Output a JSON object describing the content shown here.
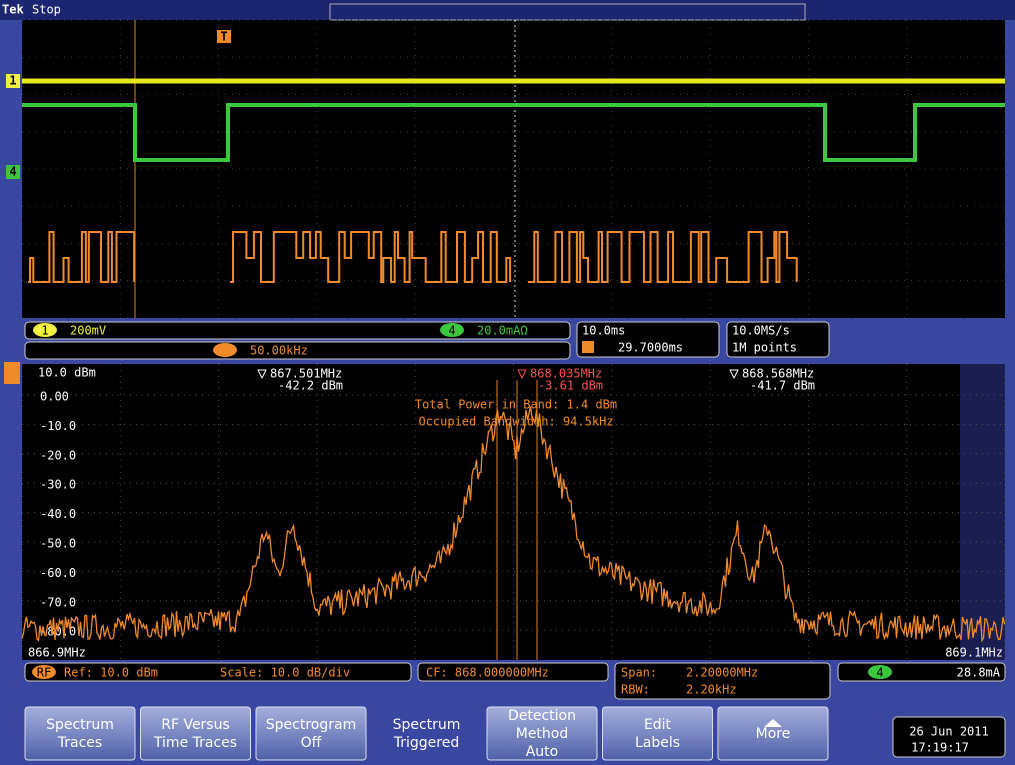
{
  "header": {
    "brand": "Tek",
    "status": "Stop"
  },
  "waveform": {
    "trigger_marker": "T",
    "channel_markers": [
      "1",
      "4"
    ]
  },
  "channel_bar": {
    "ch1_label": "1",
    "ch1_scale": "200mV",
    "ch4_label": "4",
    "ch4_scale": "20.0mAΩ",
    "math_scale": "50.00kHz",
    "timebase": "10.0ms",
    "trigger_position": "29.7000ms",
    "sample_rate": "10.0MS/s",
    "record_length": "1M points"
  },
  "spectrum": {
    "ref_level": "10.0 dBm",
    "y_labels": [
      "0.00",
      "-10.0",
      "-20.0",
      "-30.0",
      "-40.0",
      "-50.0",
      "-60.0",
      "-70.0",
      "-80.0"
    ],
    "markers": [
      {
        "freq": "867.501MHz",
        "level": "-42.2 dBm"
      },
      {
        "freq": "868.035MHz",
        "level": "-3.61 dBm"
      },
      {
        "freq": "868.568MHz",
        "level": "-41.7 dBm"
      }
    ],
    "measurements": [
      "Total Power in Band: 1.4 dBm",
      "Occupied Bandwidth: 94.5kHz"
    ],
    "start_freq": "866.9MHz",
    "stop_freq": "869.1MHz"
  },
  "rf_bar": {
    "rf_label": "RF",
    "ref": "Ref: 10.0 dBm",
    "scale": "Scale: 10.0 dB/div",
    "center": "CF: 868.000000MHz",
    "span_label": "Span:",
    "span": "2.20000MHz",
    "rbw_label": "RBW:",
    "rbw": "2.20kHz",
    "ch4_label": "4",
    "trigger_level": "28.8mA"
  },
  "menu": {
    "buttons": [
      {
        "lines": [
          "Spectrum",
          "Traces"
        ]
      },
      {
        "lines": [
          "RF Versus",
          "Time Traces"
        ]
      },
      {
        "lines": [
          "Spectrogram"
        ],
        "value": "Off"
      },
      {
        "lines": [
          "Spectrum",
          "Triggered"
        ]
      },
      {
        "lines": [
          "Detection",
          "Method"
        ],
        "value": "Auto"
      },
      {
        "lines": [
          "Edit",
          "Labels"
        ]
      },
      {
        "lines": [
          "More"
        ]
      }
    ],
    "date": "26 Jun 2011",
    "time": "17:19:17"
  }
}
